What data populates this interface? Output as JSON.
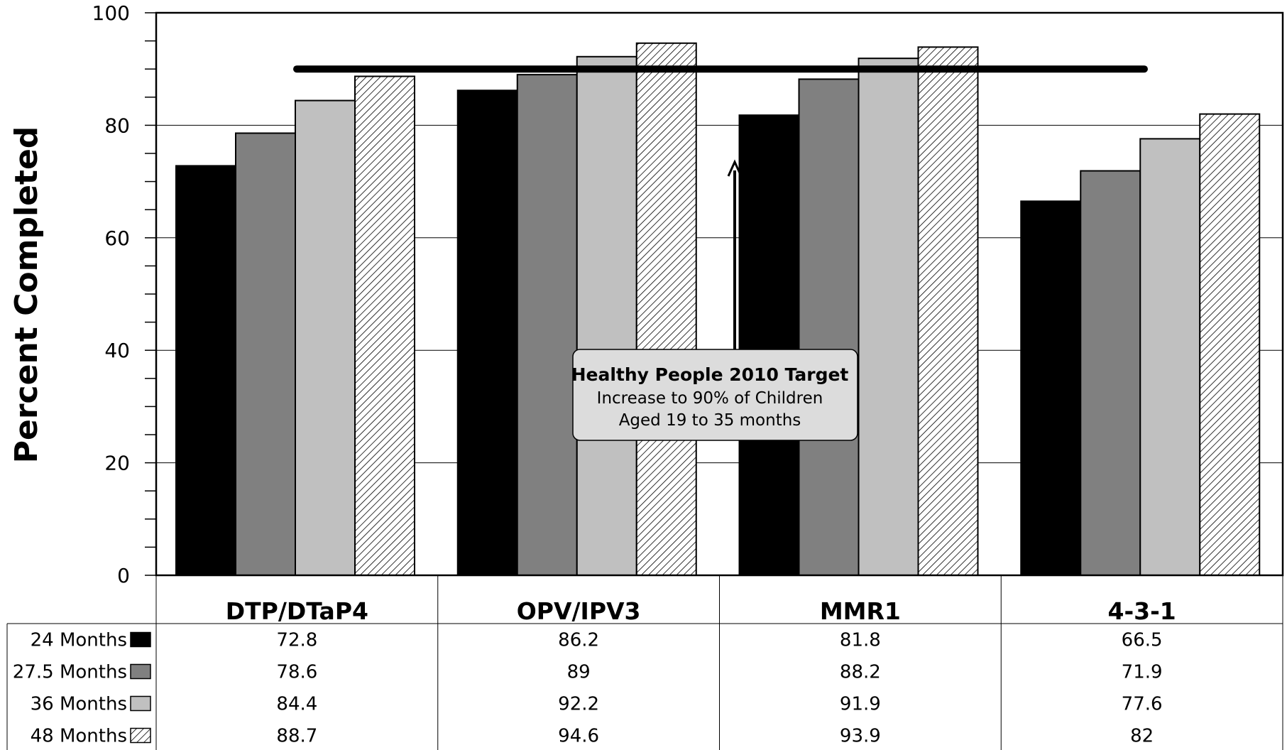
{
  "chart_data": {
    "type": "bar",
    "ylabel": "Percent Completed",
    "ylim": [
      0,
      100
    ],
    "yticks": [
      "0",
      "20",
      "40",
      "60",
      "80",
      "100"
    ],
    "grid": true,
    "categories": [
      "DTP/DTaP4",
      "OPV/IPV3",
      "MMR1",
      "4-3-1"
    ],
    "series": [
      {
        "name": "24 Months",
        "fill": "#000000",
        "values": [
          72.8,
          86.2,
          81.8,
          66.5
        ],
        "labels": [
          "72.8",
          "86.2",
          "81.8",
          "66.5"
        ]
      },
      {
        "name": "27.5 Months",
        "fill": "#808080",
        "values": [
          78.6,
          89,
          88.2,
          71.9
        ],
        "labels": [
          "78.6",
          "89",
          "88.2",
          "71.9"
        ]
      },
      {
        "name": "36 Months",
        "fill": "#c0c0c0",
        "values": [
          84.4,
          92.2,
          91.9,
          77.6
        ],
        "labels": [
          "84.4",
          "92.2",
          "91.9",
          "77.6"
        ]
      },
      {
        "name": "48 Months",
        "fill": "hatch",
        "values": [
          88.7,
          94.6,
          93.9,
          82
        ],
        "labels": [
          "88.7",
          "94.6",
          "93.9",
          "82"
        ]
      }
    ],
    "target_line": {
      "value": 90
    },
    "annotation": {
      "title": "Healthy People 2010 Target",
      "line1": "Increase to 90% of Children",
      "line2": "Aged 19 to 35 months"
    },
    "data_table": true
  }
}
